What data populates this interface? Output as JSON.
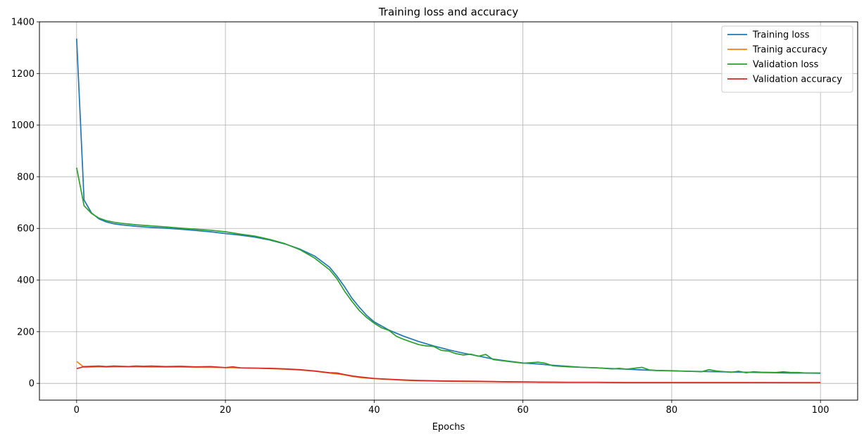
{
  "chart_data": {
    "type": "line",
    "title": "Training loss and accuracy",
    "xlabel": "Epochs",
    "ylabel": "",
    "xlim": [
      -5,
      105
    ],
    "ylim": [
      -65,
      1400
    ],
    "xticks": [
      0,
      20,
      40,
      60,
      80,
      100
    ],
    "yticks": [
      0,
      200,
      400,
      600,
      800,
      1000,
      1200,
      1400
    ],
    "grid": true,
    "legend_position": "top-right",
    "series": [
      {
        "name": "Training loss",
        "color": "#1f77b4",
        "points": [
          [
            0,
            1335
          ],
          [
            1,
            710
          ],
          [
            2,
            660
          ],
          [
            3,
            637
          ],
          [
            4,
            625
          ],
          [
            5,
            618
          ],
          [
            6,
            614
          ],
          [
            7,
            611
          ],
          [
            8,
            608
          ],
          [
            9,
            606
          ],
          [
            10,
            604
          ],
          [
            12,
            601
          ],
          [
            14,
            597
          ],
          [
            16,
            592
          ],
          [
            18,
            587
          ],
          [
            20,
            580
          ],
          [
            22,
            574
          ],
          [
            24,
            566
          ],
          [
            26,
            555
          ],
          [
            28,
            540
          ],
          [
            30,
            520
          ],
          [
            32,
            493
          ],
          [
            34,
            450
          ],
          [
            35,
            415
          ],
          [
            36,
            375
          ],
          [
            37,
            330
          ],
          [
            38,
            295
          ],
          [
            39,
            263
          ],
          [
            40,
            238
          ],
          [
            42,
            206
          ],
          [
            44,
            182
          ],
          [
            46,
            162
          ],
          [
            48,
            145
          ],
          [
            50,
            130
          ],
          [
            52,
            117
          ],
          [
            54,
            106
          ],
          [
            56,
            94
          ],
          [
            58,
            86
          ],
          [
            60,
            79
          ],
          [
            62,
            75
          ],
          [
            64,
            70
          ],
          [
            66,
            66
          ],
          [
            68,
            62
          ],
          [
            70,
            60
          ],
          [
            72,
            57
          ],
          [
            74,
            55
          ],
          [
            76,
            52
          ],
          [
            78,
            50
          ],
          [
            80,
            49
          ],
          [
            82,
            47
          ],
          [
            84,
            46
          ],
          [
            86,
            45
          ],
          [
            88,
            44
          ],
          [
            90,
            43
          ],
          [
            92,
            42
          ],
          [
            94,
            41
          ],
          [
            96,
            40
          ],
          [
            98,
            40
          ],
          [
            100,
            39
          ]
        ]
      },
      {
        "name": "Trainig accuracy",
        "color": "#ff7f0e",
        "points": [
          [
            0,
            85
          ],
          [
            1,
            62
          ],
          [
            2,
            63
          ],
          [
            3,
            64
          ],
          [
            4,
            63
          ],
          [
            5,
            64
          ],
          [
            6,
            64
          ],
          [
            8,
            64
          ],
          [
            10,
            63
          ],
          [
            12,
            63
          ],
          [
            14,
            63
          ],
          [
            16,
            62
          ],
          [
            18,
            62
          ],
          [
            20,
            61
          ],
          [
            22,
            60
          ],
          [
            24,
            59
          ],
          [
            26,
            57
          ],
          [
            28,
            55
          ],
          [
            30,
            52
          ],
          [
            32,
            47
          ],
          [
            34,
            40
          ],
          [
            36,
            33
          ],
          [
            37,
            27
          ],
          [
            38,
            23
          ],
          [
            40,
            18
          ],
          [
            42,
            15
          ],
          [
            44,
            12
          ],
          [
            46,
            10
          ],
          [
            48,
            9
          ],
          [
            50,
            8
          ],
          [
            54,
            7
          ],
          [
            58,
            6
          ],
          [
            62,
            5
          ],
          [
            66,
            4
          ],
          [
            70,
            4
          ],
          [
            74,
            3
          ],
          [
            80,
            3
          ],
          [
            90,
            3
          ],
          [
            100,
            2
          ]
        ]
      },
      {
        "name": "Validation loss",
        "color": "#2ca02c",
        "points": [
          [
            0,
            835
          ],
          [
            1,
            688
          ],
          [
            2,
            658
          ],
          [
            3,
            640
          ],
          [
            4,
            630
          ],
          [
            5,
            624
          ],
          [
            6,
            620
          ],
          [
            7,
            617
          ],
          [
            8,
            614
          ],
          [
            9,
            612
          ],
          [
            10,
            610
          ],
          [
            12,
            606
          ],
          [
            14,
            601
          ],
          [
            16,
            597
          ],
          [
            18,
            593
          ],
          [
            20,
            587
          ],
          [
            22,
            578
          ],
          [
            24,
            570
          ],
          [
            26,
            557
          ],
          [
            28,
            541
          ],
          [
            30,
            518
          ],
          [
            32,
            485
          ],
          [
            34,
            440
          ],
          [
            35,
            405
          ],
          [
            36,
            358
          ],
          [
            37,
            318
          ],
          [
            38,
            282
          ],
          [
            39,
            255
          ],
          [
            40,
            233
          ],
          [
            41,
            215
          ],
          [
            42,
            205
          ],
          [
            43,
            182
          ],
          [
            44,
            170
          ],
          [
            45,
            160
          ],
          [
            46,
            150
          ],
          [
            47,
            145
          ],
          [
            48,
            143
          ],
          [
            49,
            128
          ],
          [
            50,
            125
          ],
          [
            51,
            115
          ],
          [
            52,
            110
          ],
          [
            53,
            113
          ],
          [
            54,
            105
          ],
          [
            55,
            112
          ],
          [
            56,
            92
          ],
          [
            58,
            85
          ],
          [
            60,
            78
          ],
          [
            62,
            82
          ],
          [
            63,
            78
          ],
          [
            64,
            68
          ],
          [
            66,
            64
          ],
          [
            68,
            62
          ],
          [
            70,
            60
          ],
          [
            72,
            56
          ],
          [
            73,
            58
          ],
          [
            74,
            55
          ],
          [
            76,
            62
          ],
          [
            77,
            52
          ],
          [
            78,
            50
          ],
          [
            80,
            48
          ],
          [
            82,
            47
          ],
          [
            84,
            45
          ],
          [
            85,
            53
          ],
          [
            86,
            48
          ],
          [
            88,
            43
          ],
          [
            89,
            47
          ],
          [
            90,
            41
          ],
          [
            91,
            45
          ],
          [
            92,
            43
          ],
          [
            94,
            42
          ],
          [
            95,
            45
          ],
          [
            96,
            42
          ],
          [
            97,
            42
          ],
          [
            98,
            40
          ],
          [
            100,
            40
          ]
        ]
      },
      {
        "name": "Validation accuracy",
        "color": "#d62728",
        "points": [
          [
            0,
            57
          ],
          [
            1,
            65
          ],
          [
            2,
            66
          ],
          [
            3,
            67
          ],
          [
            4,
            65
          ],
          [
            5,
            67
          ],
          [
            6,
            66
          ],
          [
            7,
            65
          ],
          [
            8,
            67
          ],
          [
            9,
            66
          ],
          [
            10,
            67
          ],
          [
            12,
            65
          ],
          [
            14,
            66
          ],
          [
            16,
            64
          ],
          [
            18,
            65
          ],
          [
            20,
            61
          ],
          [
            21,
            64
          ],
          [
            22,
            60
          ],
          [
            24,
            59
          ],
          [
            26,
            58
          ],
          [
            28,
            56
          ],
          [
            30,
            53
          ],
          [
            32,
            48
          ],
          [
            34,
            41
          ],
          [
            35,
            40
          ],
          [
            36,
            34
          ],
          [
            37,
            29
          ],
          [
            38,
            25
          ],
          [
            40,
            19
          ],
          [
            42,
            16
          ],
          [
            44,
            13
          ],
          [
            46,
            11
          ],
          [
            48,
            10
          ],
          [
            50,
            9
          ],
          [
            54,
            8
          ],
          [
            58,
            6
          ],
          [
            62,
            5
          ],
          [
            66,
            4
          ],
          [
            70,
            4
          ],
          [
            74,
            3
          ],
          [
            80,
            3
          ],
          [
            90,
            3
          ],
          [
            100,
            3
          ]
        ]
      }
    ]
  }
}
